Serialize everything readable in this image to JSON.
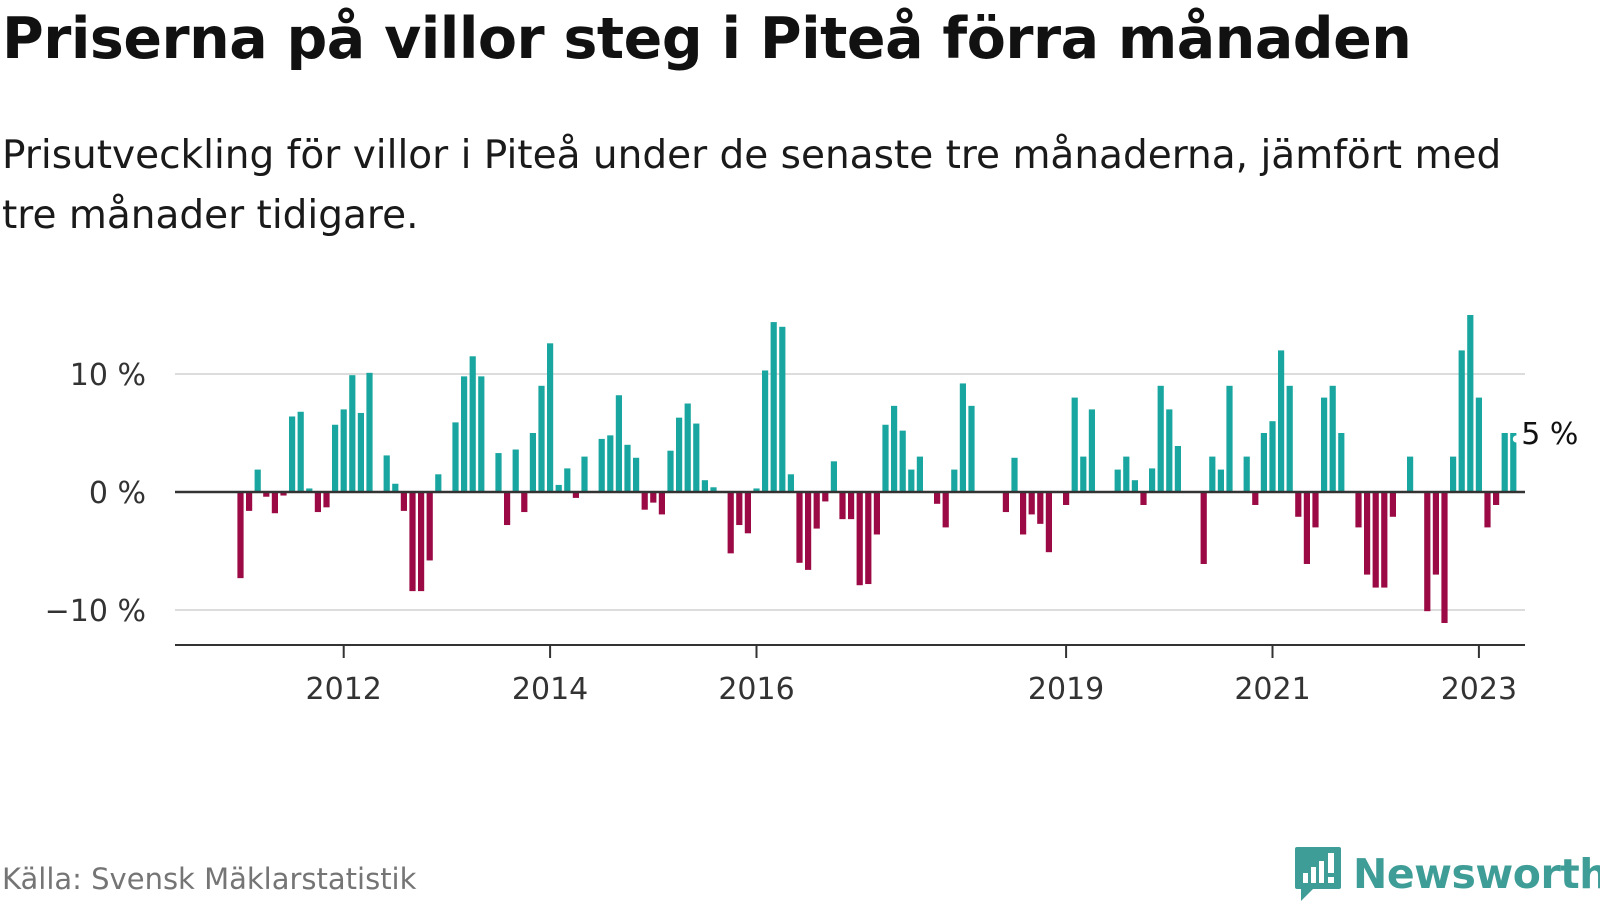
{
  "header": {
    "title": "Priserna på villor steg i Piteå förra månaden",
    "subtitle": "Prisutveckling för villor i Piteå under de senaste tre månaderna, jämfört med tre månader tidigare."
  },
  "footer": {
    "source": "Källa: Svensk Mäklarstatistik",
    "brand": "Newsworthy"
  },
  "colors": {
    "positive": "#1aa6a0",
    "negative": "#9b0a44",
    "grid": "#dcdcdc",
    "zero_line": "#333333",
    "brand": "#3f9d97"
  },
  "chart_data": {
    "type": "bar",
    "title": "Priserna på villor steg i Piteå förra månaden",
    "subtitle": "Prisutveckling för villor i Piteå under de senaste tre månaderna, jämfört med tre månader tidigare.",
    "unit": "%",
    "start": "2011-01",
    "ylim": [
      -13,
      16
    ],
    "yticks": [
      {
        "value": 10,
        "label": "10 %"
      },
      {
        "value": 0,
        "label": "0 %"
      },
      {
        "value": -10,
        "label": "−10 %"
      }
    ],
    "xticks": [
      {
        "month_index": 12,
        "label": "2012"
      },
      {
        "month_index": 36,
        "label": "2014"
      },
      {
        "month_index": 60,
        "label": "2016"
      },
      {
        "month_index": 96,
        "label": "2019"
      },
      {
        "month_index": 120,
        "label": "2021"
      },
      {
        "month_index": 144,
        "label": "2023"
      }
    ],
    "annotation": {
      "month_index": 148,
      "label": "5 %"
    },
    "values": [
      -7.3,
      -1.6,
      1.9,
      -0.4,
      -1.8,
      -0.3,
      6.4,
      6.8,
      0.3,
      -1.7,
      -1.3,
      5.7,
      7.0,
      9.9,
      6.7,
      10.1,
      0.0,
      3.1,
      0.7,
      -1.6,
      -8.4,
      -8.4,
      -5.8,
      1.5,
      0.0,
      5.9,
      9.8,
      11.5,
      9.8,
      0.0,
      3.3,
      -2.8,
      3.6,
      -1.7,
      5.0,
      9.0,
      12.6,
      0.6,
      2.0,
      -0.5,
      3.0,
      0.0,
      4.5,
      4.8,
      8.2,
      4.0,
      2.9,
      -1.5,
      -0.9,
      -1.9,
      3.5,
      6.3,
      7.5,
      5.8,
      1.0,
      0.4,
      0.0,
      -5.2,
      -2.8,
      -3.5,
      0.3,
      10.3,
      14.4,
      14.0,
      1.5,
      -6.0,
      -6.6,
      -3.1,
      -0.8,
      2.6,
      -2.3,
      -2.3,
      -7.9,
      -7.8,
      -3.6,
      5.7,
      7.3,
      5.2,
      1.9,
      3.0,
      0.0,
      -1.0,
      -3.0,
      1.9,
      9.2,
      7.3,
      0.0,
      0.0,
      0.0,
      -1.7,
      2.9,
      -3.6,
      -1.9,
      -2.7,
      -5.1,
      0.0,
      -1.1,
      8.0,
      3.0,
      7.0,
      0.0,
      0.0,
      1.9,
      3.0,
      1.0,
      -1.1,
      2.0,
      9.0,
      7.0,
      3.9,
      0.0,
      0.0,
      -6.1,
      3.0,
      1.9,
      9.0,
      0.0,
      3.0,
      -1.1,
      5.0,
      6.0,
      12.0,
      9.0,
      -2.1,
      -6.1,
      -3.0,
      8.0,
      9.0,
      5.0,
      0.0,
      -3.0,
      -7.0,
      -8.1,
      -8.1,
      -2.1,
      0.0,
      3.0,
      0.0,
      -10.1,
      -7.0,
      -11.1,
      3.0,
      12.0,
      15.0,
      8.0,
      -3.0,
      -1.1,
      5.0,
      5.0
    ]
  }
}
